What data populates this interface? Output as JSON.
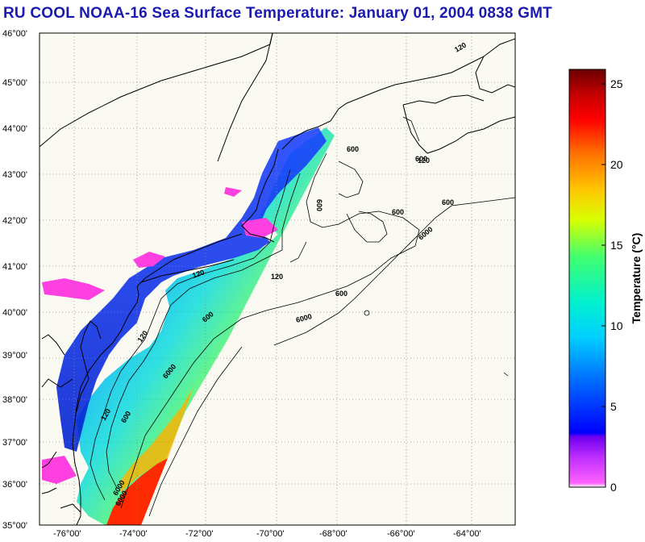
{
  "title": "RU COOL  NOAA-16  Sea Surface Temperature:  January 01, 2004 0838 GMT",
  "map": {
    "lat_labels": [
      "46°00'",
      "45°00'",
      "44°00'",
      "43°00'",
      "42°00'",
      "41°00'",
      "40°00'",
      "39°00'",
      "38°00'",
      "37°00'",
      "36°00'",
      "35°00'"
    ],
    "lon_labels": [
      "-76°00'",
      "-74°00'",
      "-72°00'",
      "-70°00'",
      "-68°00'",
      "-66°00'",
      "-64°00'"
    ],
    "lat_range": [
      35,
      46
    ],
    "lon_range": [
      -77,
      -63
    ],
    "isobaths": [
      "120",
      "600",
      "6000"
    ],
    "colors": {
      "land": "#fafaf2",
      "grid": "#8a8a8a",
      "coast": "#000000"
    }
  },
  "colorbar": {
    "label": "Temperature (°C)",
    "ticks": [
      "0",
      "5",
      "10",
      "15",
      "20",
      "25"
    ],
    "range": [
      0,
      26
    ],
    "stops": [
      "#ffffff",
      "#ff60ff",
      "#9000ff",
      "#0000ff",
      "#0090ff",
      "#00e8e8",
      "#30ff80",
      "#d8ff00",
      "#ffd000",
      "#ff7000",
      "#ff0000",
      "#c00000",
      "#700000"
    ]
  }
}
